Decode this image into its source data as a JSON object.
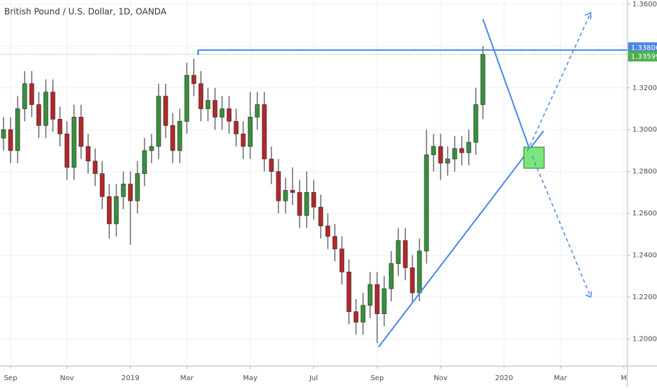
{
  "chart_data": {
    "type": "candlestick",
    "title": "British Pound / U.S. Dollar, 1D, OANDA",
    "categories": [
      null,
      "Sep",
      null,
      null,
      null,
      null,
      null,
      null,
      null,
      "Nov",
      null,
      null,
      null,
      null,
      null,
      null,
      null,
      null,
      "2019",
      null,
      null,
      null,
      null,
      null,
      null,
      null,
      "Mar",
      null,
      null,
      null,
      null,
      null,
      null,
      null,
      null,
      "May",
      null,
      null,
      null,
      null,
      null,
      null,
      null,
      null,
      "Jul",
      null,
      null,
      null,
      null,
      null,
      null,
      null,
      null,
      "Sep",
      null,
      null,
      null,
      null,
      null,
      null,
      null,
      null,
      "Nov",
      null,
      null,
      null,
      null,
      null,
      null,
      null,
      null,
      "2020",
      null,
      null,
      null,
      null,
      null,
      null,
      null,
      "Mar",
      null,
      null,
      null,
      null,
      null,
      null,
      null,
      null,
      "M"
    ],
    "open": [
      1.296,
      1.3,
      1.29,
      1.31,
      1.322,
      1.312,
      1.302,
      1.318,
      1.305,
      1.298,
      1.282,
      1.306,
      1.292,
      1.285,
      1.279,
      1.268,
      1.255,
      1.268,
      1.274,
      1.266,
      1.279,
      1.29,
      1.292,
      1.316,
      1.302,
      1.29,
      1.304,
      1.326,
      1.322,
      1.31,
      1.314,
      1.306,
      1.31,
      1.304,
      1.298,
      1.292,
      1.306,
      1.312,
      1.286,
      1.28,
      1.266,
      1.271,
      1.27,
      1.259,
      1.27,
      1.263,
      1.254,
      1.249,
      1.243,
      1.232,
      1.213,
      1.208,
      1.216,
      1.226,
      1.212,
      1.224,
      1.236,
      1.247,
      1.234,
      1.222,
      1.242,
      1.288,
      1.292,
      1.284,
      1.286,
      1.291,
      1.289,
      1.294,
      1.312,
      null,
      null,
      null,
      null,
      null,
      null,
      null,
      null,
      null,
      null,
      null,
      null,
      null,
      null,
      null,
      null,
      null,
      null,
      null,
      null
    ],
    "high": [
      1.306,
      1.306,
      1.316,
      1.328,
      1.328,
      1.318,
      1.324,
      1.324,
      1.311,
      1.304,
      1.312,
      1.312,
      1.298,
      1.291,
      1.285,
      1.274,
      1.274,
      1.28,
      1.28,
      1.285,
      1.296,
      1.298,
      1.322,
      1.322,
      1.308,
      1.31,
      1.332,
      1.334,
      1.328,
      1.32,
      1.32,
      1.316,
      1.316,
      1.31,
      1.304,
      1.318,
      1.318,
      1.318,
      1.292,
      1.286,
      1.277,
      1.282,
      1.276,
      1.28,
      1.276,
      1.269,
      1.26,
      1.255,
      1.249,
      1.238,
      1.219,
      1.222,
      1.232,
      1.232,
      1.23,
      1.242,
      1.253,
      1.253,
      1.24,
      1.248,
      1.3,
      1.298,
      1.298,
      1.292,
      1.297,
      1.297,
      1.3,
      1.32,
      1.34,
      null,
      null,
      null,
      null,
      null,
      null,
      null,
      null,
      null,
      null,
      null,
      null,
      null,
      null,
      null,
      null,
      null,
      null,
      null,
      null
    ],
    "low": [
      1.29,
      1.284,
      1.284,
      1.304,
      1.306,
      1.296,
      1.296,
      1.299,
      1.292,
      1.276,
      1.276,
      1.286,
      1.279,
      1.273,
      1.262,
      1.248,
      1.249,
      1.262,
      1.245,
      1.26,
      1.273,
      1.284,
      1.286,
      1.296,
      1.284,
      1.284,
      1.298,
      1.316,
      1.304,
      1.304,
      1.3,
      1.3,
      1.298,
      1.292,
      1.286,
      1.286,
      1.3,
      1.28,
      1.274,
      1.26,
      1.26,
      1.264,
      1.253,
      1.253,
      1.257,
      1.248,
      1.243,
      1.237,
      1.226,
      1.207,
      1.202,
      1.202,
      1.21,
      1.198,
      1.206,
      1.218,
      1.23,
      1.228,
      1.218,
      1.218,
      1.236,
      1.28,
      1.276,
      1.278,
      1.28,
      1.283,
      1.283,
      1.288,
      1.305,
      null,
      null,
      null,
      null,
      null,
      null,
      null,
      null,
      null,
      null,
      null,
      null,
      null,
      null,
      null,
      null,
      null,
      null,
      null,
      null
    ],
    "close": [
      1.3,
      1.29,
      1.31,
      1.322,
      1.312,
      1.302,
      1.318,
      1.305,
      1.298,
      1.282,
      1.306,
      1.292,
      1.285,
      1.279,
      1.268,
      1.255,
      1.268,
      1.274,
      1.266,
      1.279,
      1.29,
      1.292,
      1.316,
      1.302,
      1.29,
      1.304,
      1.326,
      1.322,
      1.31,
      1.314,
      1.306,
      1.31,
      1.304,
      1.298,
      1.292,
      1.306,
      1.312,
      1.286,
      1.28,
      1.266,
      1.271,
      1.27,
      1.259,
      1.27,
      1.263,
      1.254,
      1.249,
      1.243,
      1.232,
      1.213,
      1.208,
      1.216,
      1.226,
      1.212,
      1.224,
      1.236,
      1.247,
      1.234,
      1.222,
      1.242,
      1.288,
      1.292,
      1.284,
      1.286,
      1.291,
      1.289,
      1.294,
      1.312,
      1.336,
      null,
      null,
      null,
      null,
      null,
      null,
      null,
      null,
      null,
      null,
      null,
      null,
      null,
      null,
      null,
      null,
      null,
      null,
      null,
      null
    ],
    "up_color": "#3a8f3e",
    "down_color": "#b5282b",
    "ylim": [
      1.187,
      1.362
    ],
    "yticks": [
      {
        "value": 1.2,
        "label": "1.20000"
      },
      {
        "value": 1.22,
        "label": "1.22000"
      },
      {
        "value": 1.24,
        "label": "1.24000"
      },
      {
        "value": 1.26,
        "label": "1.26000"
      },
      {
        "value": 1.28,
        "label": "1.28000"
      },
      {
        "value": 1.3,
        "label": "1.30000"
      },
      {
        "value": 1.32,
        "label": "1.32000"
      },
      {
        "value": 1.34,
        "label": "1.34000"
      },
      {
        "value": 1.36,
        "label": "1.36000"
      }
    ],
    "price_lines": [
      {
        "value": 1.33806,
        "color": "#4a86e8"
      },
      {
        "value": 1.33599,
        "color": "#4caf50"
      }
    ],
    "grid": true
  }
}
